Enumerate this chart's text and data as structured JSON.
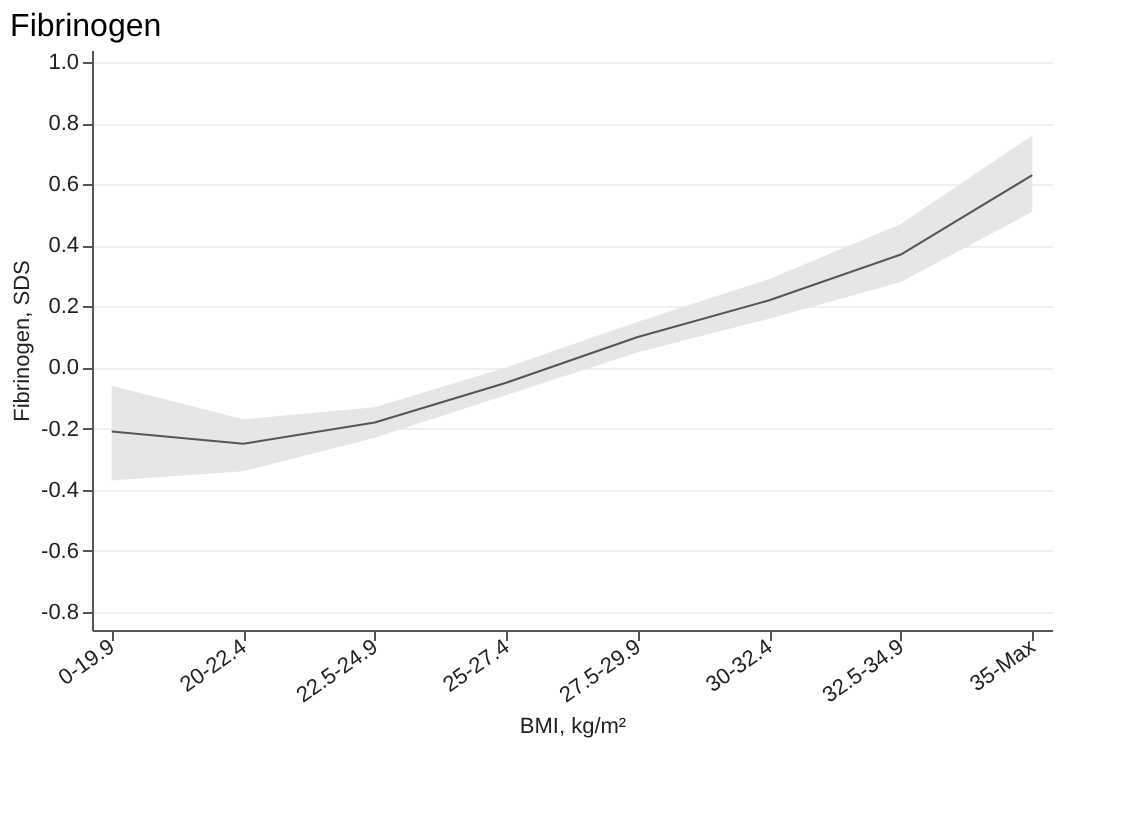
{
  "chart_data": {
    "type": "line",
    "title": "Fibrinogen",
    "xlabel": "BMI, kg/m²",
    "ylabel": "Fibrinogen, SDS",
    "categories": [
      "0-19.9",
      "20-22.4",
      "22.5-24.9",
      "25-27.4",
      "27.5-29.9",
      "30-32.4",
      "32.5-34.9",
      "35-Max"
    ],
    "series": [
      {
        "color": "#555555",
        "values": [
          -0.21,
          -0.25,
          -0.18,
          -0.05,
          0.1,
          0.22,
          0.37,
          0.63
        ],
        "lower": [
          -0.37,
          -0.34,
          -0.23,
          -0.09,
          0.05,
          0.16,
          0.28,
          0.51
        ],
        "upper": [
          -0.06,
          -0.17,
          -0.13,
          0.0,
          0.15,
          0.29,
          0.47,
          0.76
        ]
      }
    ],
    "ylim": [
      -0.86,
      1.04
    ],
    "yticks": [
      {
        "value": -0.8,
        "label": "-0.8"
      },
      {
        "value": -0.6,
        "label": "-0.6"
      },
      {
        "value": -0.4,
        "label": "-0.4"
      },
      {
        "value": -0.2,
        "label": "-0.2"
      },
      {
        "value": 0,
        "label": "0.0"
      },
      {
        "value": 0.2,
        "label": "0.2"
      },
      {
        "value": 0.4,
        "label": "0.4"
      },
      {
        "value": 0.6,
        "label": "0.6"
      },
      {
        "value": 0.8,
        "label": "0.8"
      },
      {
        "value": 1.0,
        "label": "1.0"
      }
    ],
    "grid": "y",
    "marker": "none",
    "line_style": "solid"
  }
}
